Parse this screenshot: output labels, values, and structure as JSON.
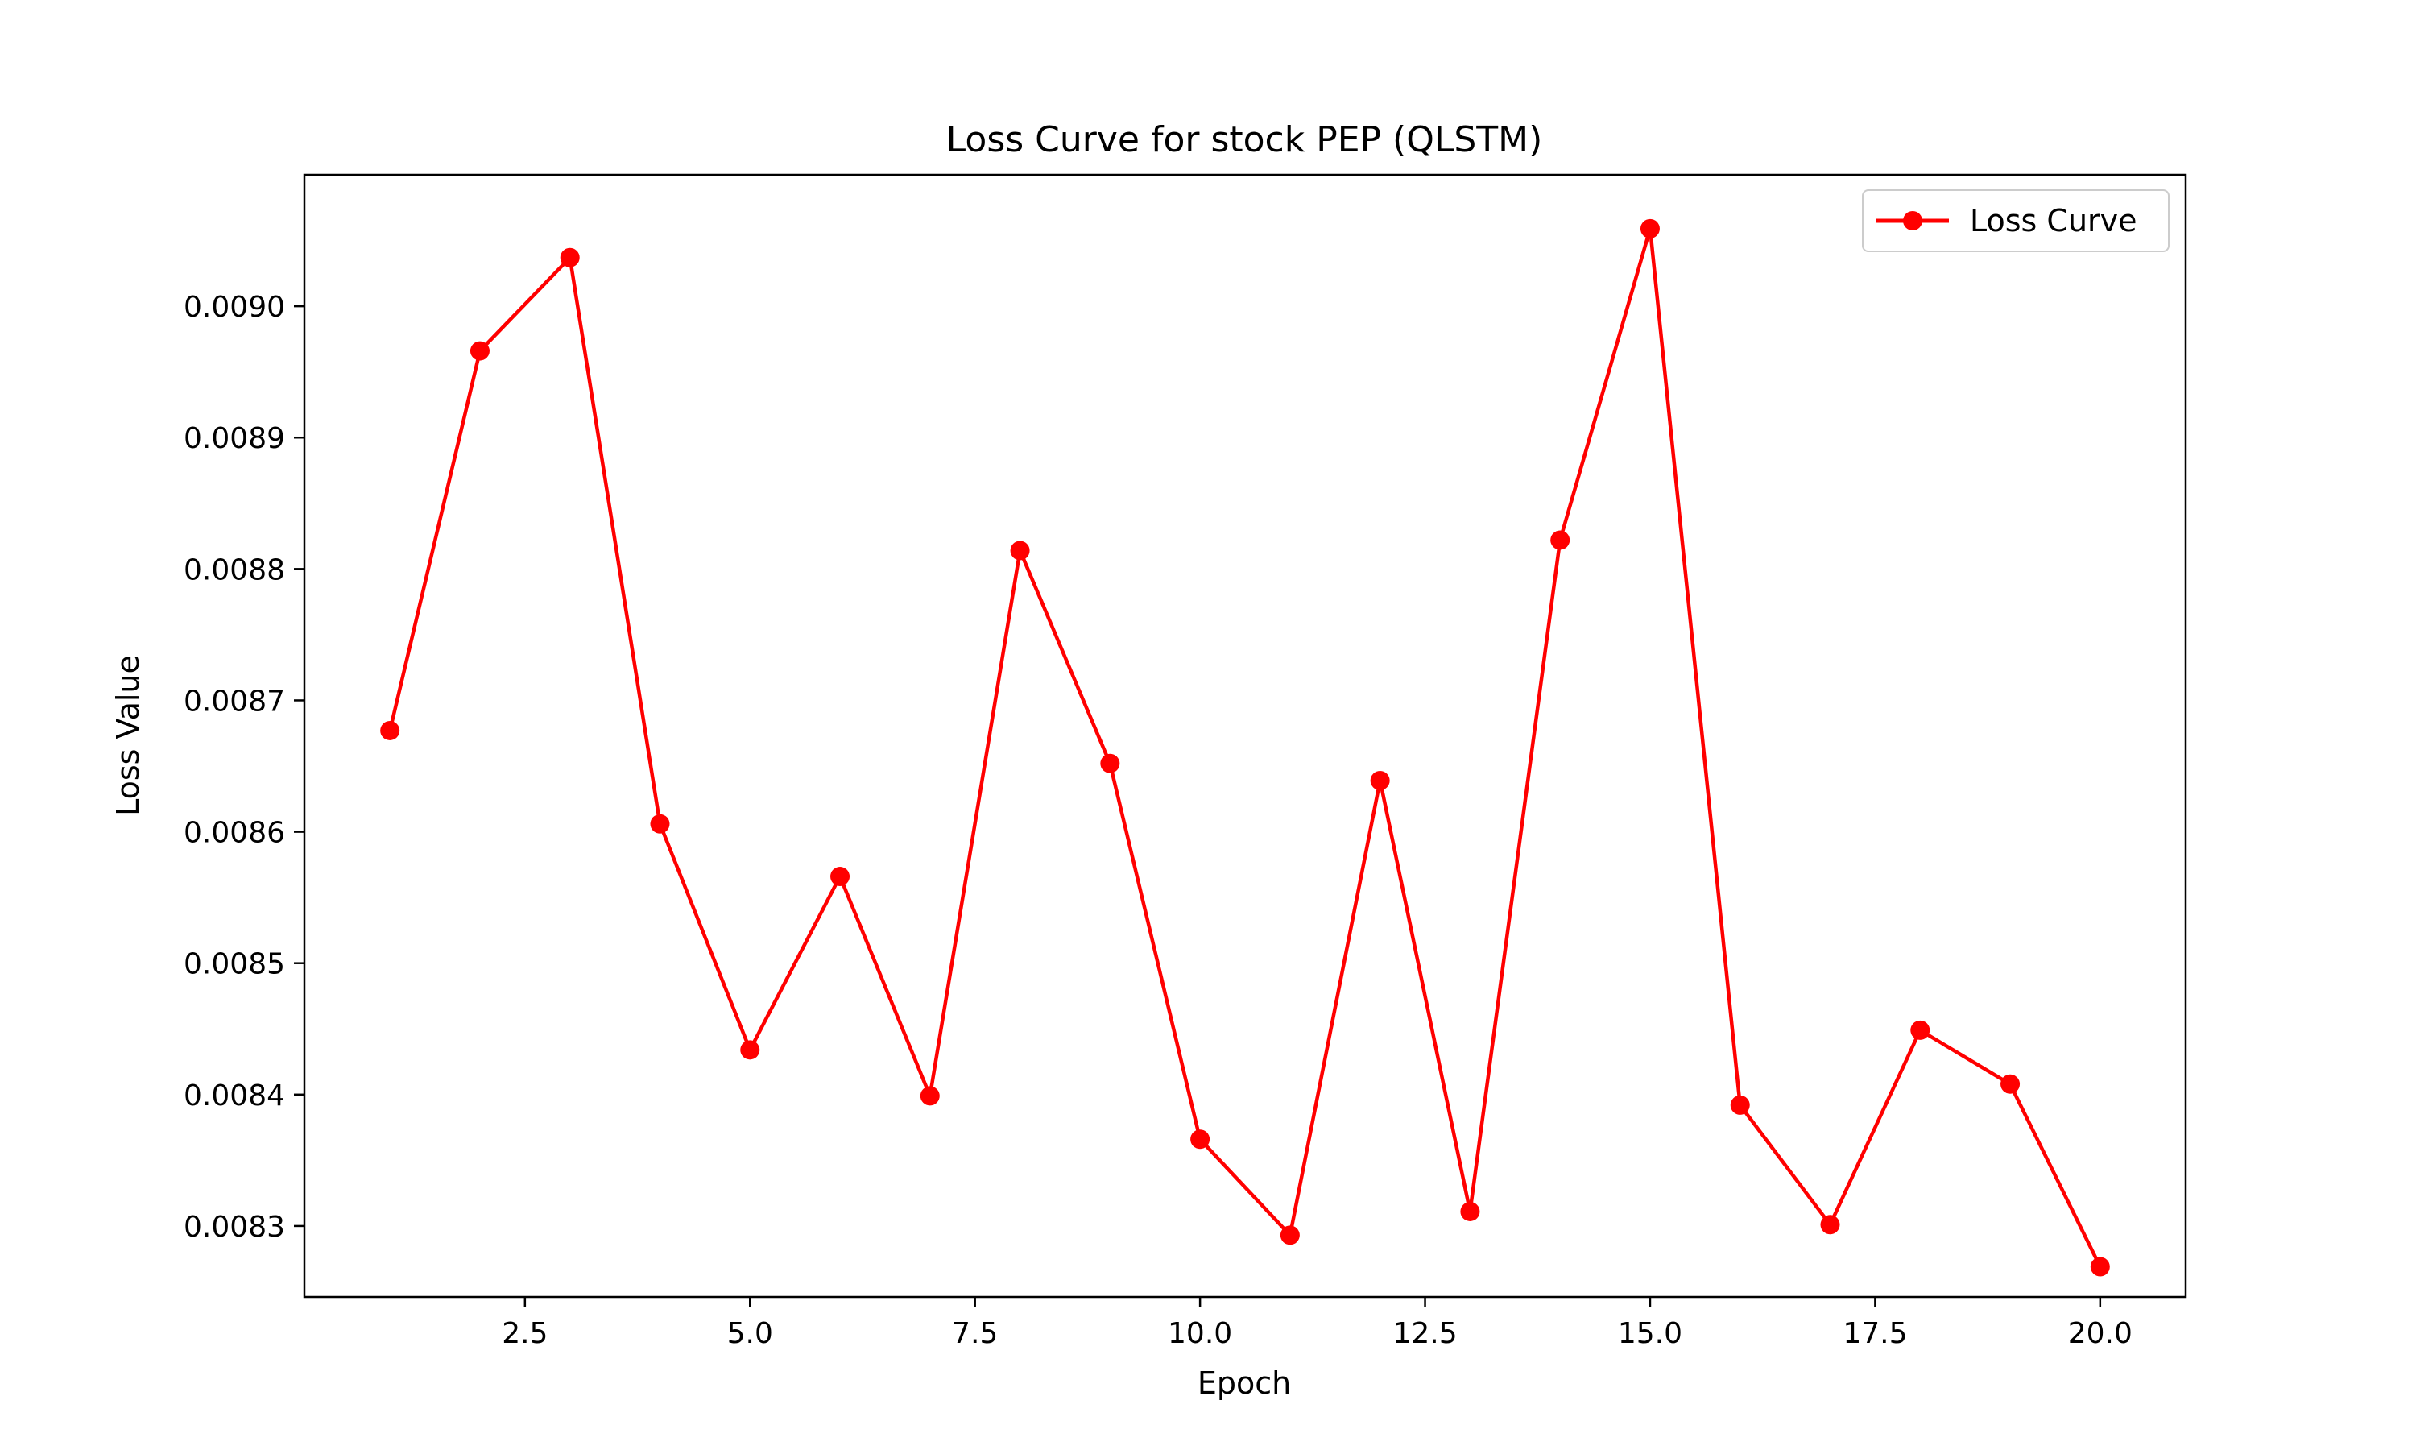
{
  "chart_data": {
    "type": "line",
    "title": "Loss Curve for stock PEP (QLSTM)",
    "xlabel": "Epoch",
    "ylabel": "Loss Value",
    "xlim": [
      0.05,
      20.95
    ],
    "ylim": [
      0.008246,
      0.0091
    ],
    "xticks": [
      2.5,
      5.0,
      7.5,
      10.0,
      12.5,
      15.0,
      17.5,
      20.0
    ],
    "xtick_labels": [
      "2.5",
      "5.0",
      "7.5",
      "10.0",
      "12.5",
      "15.0",
      "17.5",
      "20.0"
    ],
    "yticks": [
      0.0083,
      0.0084,
      0.0085,
      0.0086,
      0.0087,
      0.0088,
      0.0089,
      0.009
    ],
    "ytick_labels": [
      "0.0083",
      "0.0084",
      "0.0085",
      "0.0086",
      "0.0087",
      "0.0088",
      "0.0089",
      "0.0090"
    ],
    "grid": false,
    "legend": "top-right",
    "series": [
      {
        "name": "Loss Curve",
        "color": "#ff0000",
        "marker": "circle",
        "x": [
          1,
          2,
          3,
          4,
          5,
          6,
          7,
          8,
          9,
          10,
          11,
          12,
          13,
          14,
          15,
          16,
          17,
          18,
          19,
          20
        ],
        "y": [
          0.008677,
          0.008966,
          0.009037,
          0.008606,
          0.008434,
          0.008566,
          0.008399,
          0.008814,
          0.008652,
          0.008366,
          0.008293,
          0.008639,
          0.008311,
          0.008822,
          0.009059,
          0.008392,
          0.008301,
          0.008449,
          0.008408,
          0.008269
        ]
      }
    ]
  }
}
